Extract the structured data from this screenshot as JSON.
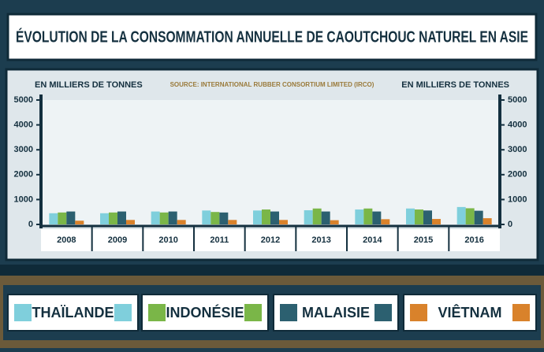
{
  "chart_data": {
    "type": "bar",
    "title": "ÉVOLUTION DE LA CONSOMMATION ANNUELLE DE CAOUTCHOUC NATUREL EN ASIE",
    "y_label": "EN MILLIERS DE TONNES",
    "y2_label": "EN MILLIERS DE TONNES",
    "source": "SOURCE: INTERNATIONAL RUBBER CONSORTIUM LIMITED (IRCO)",
    "categories": [
      "2008",
      "2009",
      "2010",
      "2011",
      "2012",
      "2013",
      "2014",
      "2015",
      "2016"
    ],
    "series": [
      {
        "name": "THAÏLANDE",
        "color": "#7fcfdc",
        "values": [
          450,
          450,
          520,
          560,
          560,
          570,
          600,
          640,
          700
        ]
      },
      {
        "name": "INDONÉSIE",
        "color": "#7ab648",
        "values": [
          480,
          480,
          480,
          500,
          600,
          640,
          640,
          600,
          650
        ]
      },
      {
        "name": "MALAISIE",
        "color": "#2c6070",
        "values": [
          520,
          520,
          520,
          480,
          520,
          520,
          520,
          560,
          550
        ]
      },
      {
        "name": "VIÊTNAM",
        "color": "#d9822b",
        "values": [
          150,
          180,
          180,
          180,
          180,
          170,
          210,
          220,
          250
        ]
      }
    ],
    "ylim": [
      0,
      5000
    ],
    "yticks": [
      0,
      1000,
      2000,
      3000,
      4000,
      5000
    ],
    "y2lim": [
      0,
      5000
    ],
    "y2ticks": [
      0,
      1000,
      2000,
      3000,
      4000,
      5000
    ]
  }
}
